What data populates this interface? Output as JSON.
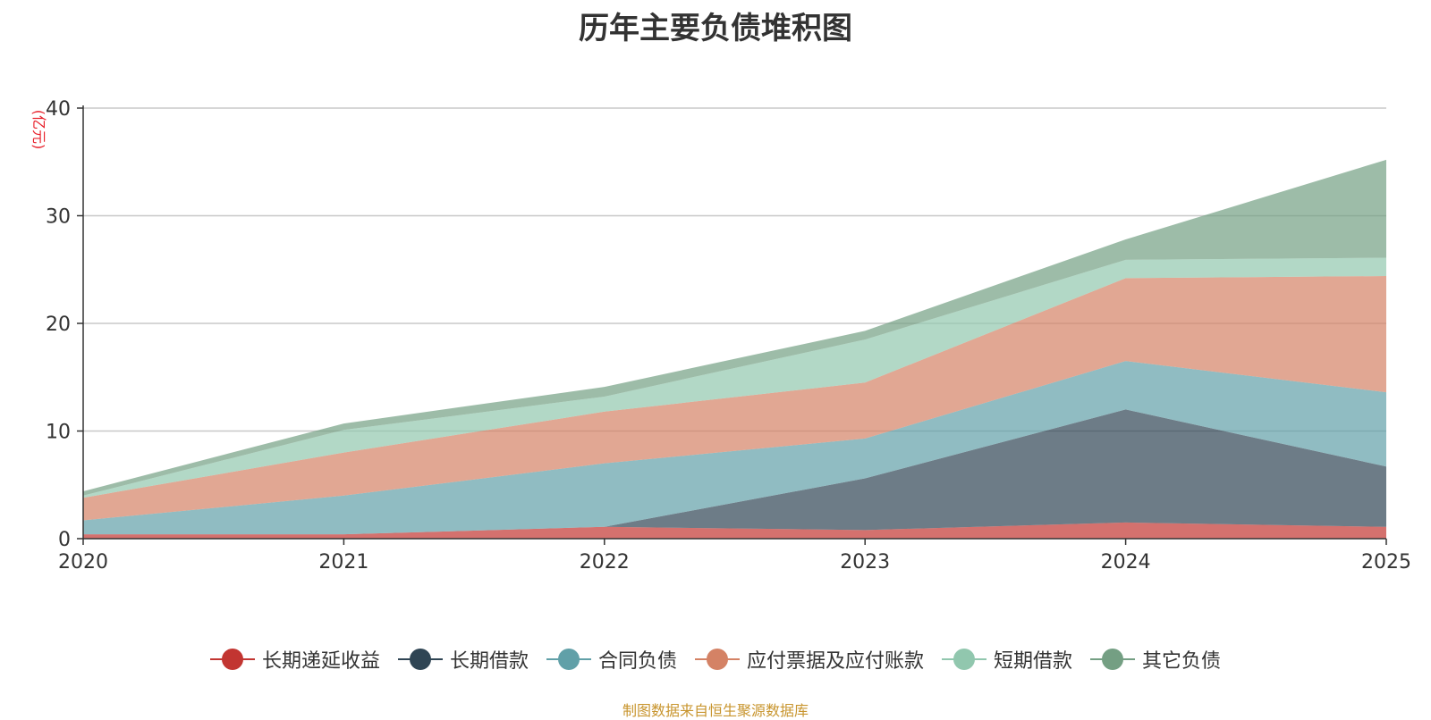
{
  "chart_data": {
    "type": "area",
    "stacked": true,
    "title": "历年主要负债堆积图",
    "ylabel": "(亿元)",
    "xlabel": "",
    "x": [
      "2020",
      "2021",
      "2022",
      "2023",
      "2024",
      "2025"
    ],
    "ylim": [
      0,
      40
    ],
    "yticks": [
      0,
      10,
      20,
      30,
      40
    ],
    "grid": true,
    "legend_position": "bottom",
    "series": [
      {
        "name": "长期递延收益",
        "color": "#c23531",
        "values": [
          0.4,
          0.4,
          1.1,
          0.8,
          1.5,
          1.1
        ]
      },
      {
        "name": "长期借款",
        "color": "#2f4554",
        "values": [
          0.0,
          0.0,
          0.0,
          4.8,
          10.5,
          5.6
        ]
      },
      {
        "name": "合同负债",
        "color": "#61a0a8",
        "values": [
          1.3,
          3.6,
          5.9,
          3.7,
          4.5,
          6.9
        ]
      },
      {
        "name": "应付票据及应付账款",
        "color": "#d48265",
        "values": [
          2.1,
          4.0,
          4.8,
          5.2,
          7.7,
          10.8
        ]
      },
      {
        "name": "短期借款",
        "color": "#91c7ae",
        "values": [
          0.2,
          2.1,
          1.4,
          4.0,
          1.7,
          1.7
        ]
      },
      {
        "name": "其它负债",
        "color": "#749f83",
        "values": [
          0.4,
          0.6,
          0.9,
          0.8,
          1.9,
          9.1
        ]
      }
    ]
  },
  "source_note": "制图数据来自恒生聚源数据库"
}
